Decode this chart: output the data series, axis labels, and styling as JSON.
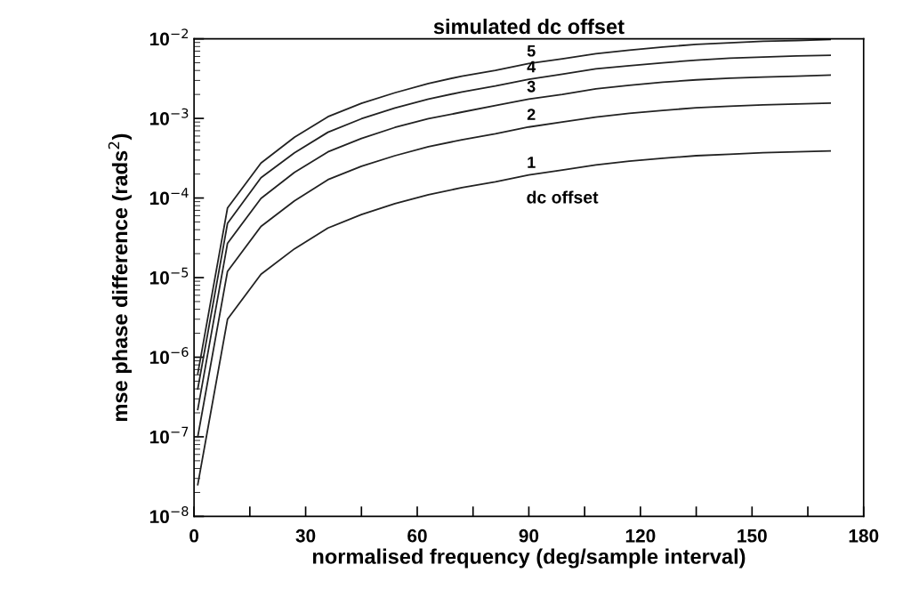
{
  "chart_data": {
    "type": "line",
    "title": "simulated dc offset",
    "xlabel": "normalised frequency (deg/sample interval)",
    "ylabel": "mse phase difference (rads$^{2}$)",
    "x": [
      1,
      9,
      18,
      27,
      36,
      45,
      54,
      63,
      72,
      81,
      90,
      99,
      108,
      117,
      126,
      135,
      144,
      153,
      162,
      171
    ],
    "series": [
      {
        "name": "1",
        "color": "#222222",
        "values": [
          2.5e-08,
          3e-06,
          1.1e-05,
          2.3e-05,
          4.2e-05,
          6.2e-05,
          8.5e-05,
          0.00011,
          0.000135,
          0.00016,
          0.000195,
          0.000225,
          0.00026,
          0.00029,
          0.000315,
          0.00034,
          0.000355,
          0.00037,
          0.00038,
          0.00039
        ]
      },
      {
        "name": "2",
        "color": "#222222",
        "values": [
          1e-07,
          1.2e-05,
          4.4e-05,
          9.2e-05,
          0.00017,
          0.00025,
          0.00034,
          0.00044,
          0.00054,
          0.00064,
          0.00078,
          0.0009,
          0.00104,
          0.00116,
          0.00126,
          0.00136,
          0.00142,
          0.00148,
          0.00152,
          0.00156
        ]
      },
      {
        "name": "3",
        "color": "#222222",
        "values": [
          2.2e-07,
          2.7e-05,
          9.9e-05,
          0.00021,
          0.00038,
          0.00056,
          0.00077,
          0.00099,
          0.0012,
          0.00145,
          0.00175,
          0.002,
          0.00235,
          0.0026,
          0.00285,
          0.00305,
          0.0032,
          0.0033,
          0.0034,
          0.0035
        ]
      },
      {
        "name": "4",
        "color": "#222222",
        "values": [
          4e-07,
          4.8e-05,
          0.00018,
          0.00037,
          0.00067,
          0.00099,
          0.00135,
          0.00175,
          0.00215,
          0.00255,
          0.0031,
          0.0036,
          0.0042,
          0.0046,
          0.005,
          0.0054,
          0.0057,
          0.0059,
          0.0061,
          0.0062
        ]
      },
      {
        "name": "5",
        "color": "#222222",
        "values": [
          6.2e-07,
          7.5e-05,
          0.000275,
          0.00058,
          0.00105,
          0.00155,
          0.0021,
          0.00275,
          0.0034,
          0.004,
          0.0049,
          0.0056,
          0.0065,
          0.0072,
          0.0079,
          0.0085,
          0.0089,
          0.0093,
          0.0095,
          0.0098
        ]
      }
    ],
    "annotations": [
      "dc offset"
    ],
    "log": "y",
    "xlim": [
      0,
      180
    ],
    "xticks": [
      0,
      {
        "value": 15,
        "label": null
      },
      30,
      {
        "value": 45,
        "label": null
      },
      60,
      {
        "value": 75,
        "label": null
      },
      90,
      {
        "value": 105,
        "label": null
      },
      120,
      {
        "value": 135,
        "label": null
      },
      150,
      {
        "value": 165,
        "label": null
      },
      180
    ],
    "ylim": [
      1e-08,
      0.01
    ],
    "yticks": [
      {
        "value": 1e-08,
        "label": "10$^{−8}$"
      },
      {
        "value": 1e-07,
        "label": "10$^{−7}$"
      },
      {
        "value": 1e-06,
        "label": "10$^{−6}$"
      },
      {
        "value": 1e-05,
        "label": "10$^{−5}$"
      },
      {
        "value": 0.0001,
        "label": "10$^{−4}$"
      },
      {
        "value": 0.001,
        "label": "10$^{−3}$"
      },
      {
        "value": 0.01,
        "label": "10$^{−2}$"
      }
    ],
    "grid": false,
    "marker": "none",
    "line_style": "solid"
  }
}
